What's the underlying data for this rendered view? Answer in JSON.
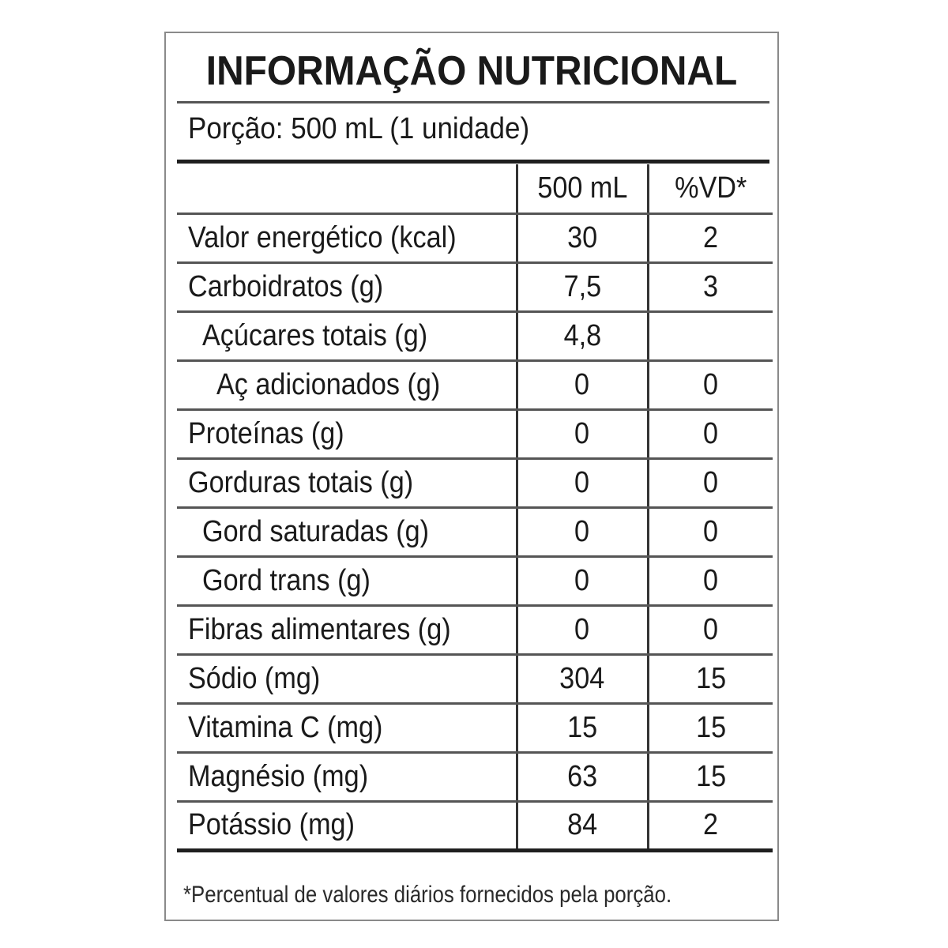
{
  "label": {
    "title": "INFORMAÇÃO NUTRICIONAL",
    "portion": "Porção: 500 mL (1 unidade)",
    "columns": {
      "quantity": "500 mL",
      "daily_value": "%VD*"
    },
    "rows": [
      {
        "name": "Valor energético (kcal)",
        "quantity": "30",
        "daily_value": "2",
        "indent": 0
      },
      {
        "name": "Carboidratos (g)",
        "quantity": "7,5",
        "daily_value": "3",
        "indent": 0
      },
      {
        "name": "Açúcares totais (g)",
        "quantity": "4,8",
        "daily_value": "",
        "indent": 1
      },
      {
        "name": "Aç adicionados (g)",
        "quantity": "0",
        "daily_value": "0",
        "indent": 2
      },
      {
        "name": "Proteínas (g)",
        "quantity": "0",
        "daily_value": "0",
        "indent": 0
      },
      {
        "name": "Gorduras totais (g)",
        "quantity": "0",
        "daily_value": "0",
        "indent": 0
      },
      {
        "name": "Gord saturadas (g)",
        "quantity": "0",
        "daily_value": "0",
        "indent": 1
      },
      {
        "name": "Gord trans (g)",
        "quantity": "0",
        "daily_value": "0",
        "indent": 1
      },
      {
        "name": "Fibras alimentares (g)",
        "quantity": "0",
        "daily_value": "0",
        "indent": 0
      },
      {
        "name": "Sódio (mg)",
        "quantity": "304",
        "daily_value": "15",
        "indent": 0
      },
      {
        "name": "Vitamina C (mg)",
        "quantity": "15",
        "daily_value": "15",
        "indent": 0
      },
      {
        "name": "Magnésio (mg)",
        "quantity": "63",
        "daily_value": "15",
        "indent": 0
      },
      {
        "name": "Potássio (mg)",
        "quantity": "84",
        "daily_value": "2",
        "indent": 0
      }
    ],
    "footnote": "*Percentual de valores diários fornecidos pela porção."
  }
}
